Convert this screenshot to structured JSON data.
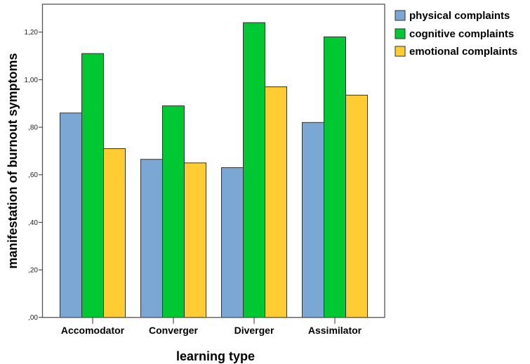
{
  "chart_data": {
    "type": "bar",
    "title": "",
    "xlabel": "learning type",
    "ylabel": "manifestation of burnout symptoms",
    "categories": [
      "Accomodator",
      "Converger",
      "Diverger",
      "Assimilator"
    ],
    "series": [
      {
        "name": "physical complaints",
        "color": "#7BA7D4",
        "values": [
          0.86,
          0.665,
          0.63,
          0.82
        ]
      },
      {
        "name": "cognitive complaints",
        "color": "#00C832",
        "values": [
          1.11,
          0.89,
          1.24,
          1.18
        ]
      },
      {
        "name": "emotional complaints",
        "color": "#FFCC33",
        "values": [
          0.71,
          0.65,
          0.97,
          0.935
        ]
      }
    ],
    "ylim": [
      0,
      1.32
    ],
    "yticks": [
      0,
      0.2,
      0.4,
      0.6,
      0.8,
      1.0,
      1.2
    ],
    "ytick_labels": [
      ",00",
      ",20",
      ",40",
      ",60",
      ",80",
      "1,00",
      "1,20"
    ],
    "grid": false,
    "legend_position": "top-right"
  }
}
